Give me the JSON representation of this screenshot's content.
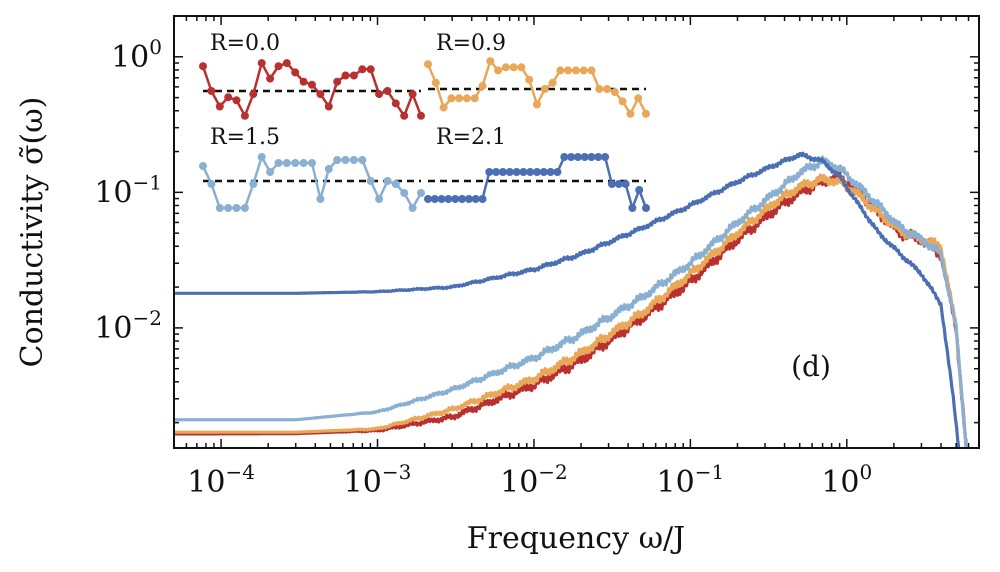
{
  "chart_data": {
    "type": "line",
    "panel_label": "(d)",
    "xlabel": "Frequency ω/J",
    "ylabel": "Conductivity σ̃(ω)",
    "x_scale": "log",
    "y_scale": "log",
    "xlim": [
      5e-05,
      7
    ],
    "ylim": [
      0.0013,
      2
    ],
    "x_ticks": [
      {
        "value": 0.0001,
        "base": "10",
        "exp": "−4"
      },
      {
        "value": 0.001,
        "base": "10",
        "exp": "−3"
      },
      {
        "value": 0.01,
        "base": "10",
        "exp": "−2"
      },
      {
        "value": 0.1,
        "base": "10",
        "exp": "−1"
      },
      {
        "value": 1,
        "base": "10",
        "exp": "0"
      }
    ],
    "y_ticks": [
      {
        "value": 1,
        "base": "10",
        "exp": "0"
      },
      {
        "value": 0.1,
        "base": "10",
        "exp": "−1"
      },
      {
        "value": 0.01,
        "base": "10",
        "exp": "−2"
      }
    ],
    "series": [
      {
        "name": "R=0.0",
        "color": "#b8312f",
        "noise": 0.045,
        "points": [
          [
            5e-05,
            0.00165
          ],
          [
            0.0003,
            0.00166
          ],
          [
            0.001,
            0.00175
          ],
          [
            0.003,
            0.0022
          ],
          [
            0.01,
            0.0038
          ],
          [
            0.02,
            0.0058
          ],
          [
            0.05,
            0.012
          ],
          [
            0.1,
            0.022
          ],
          [
            0.2,
            0.045
          ],
          [
            0.35,
            0.075
          ],
          [
            0.5,
            0.1
          ],
          [
            0.7,
            0.12
          ],
          [
            0.9,
            0.13
          ],
          [
            1.2,
            0.1
          ],
          [
            1.6,
            0.07
          ],
          [
            2.2,
            0.05
          ],
          [
            3,
            0.045
          ],
          [
            4,
            0.035
          ],
          [
            5,
            0.01
          ],
          [
            5.8,
            0.0013
          ]
        ]
      },
      {
        "name": "R=0.9",
        "color": "#e8a857",
        "noise": 0.04,
        "points": [
          [
            5e-05,
            0.0017
          ],
          [
            0.0003,
            0.0017
          ],
          [
            0.001,
            0.0018
          ],
          [
            0.003,
            0.0025
          ],
          [
            0.01,
            0.0042
          ],
          [
            0.02,
            0.0065
          ],
          [
            0.05,
            0.013
          ],
          [
            0.1,
            0.025
          ],
          [
            0.2,
            0.05
          ],
          [
            0.35,
            0.085
          ],
          [
            0.5,
            0.11
          ],
          [
            0.7,
            0.125
          ],
          [
            0.9,
            0.12
          ],
          [
            1.2,
            0.095
          ],
          [
            1.6,
            0.07
          ],
          [
            2.2,
            0.052
          ],
          [
            3,
            0.045
          ],
          [
            4,
            0.04
          ],
          [
            5,
            0.01
          ],
          [
            5.8,
            0.0013
          ]
        ]
      },
      {
        "name": "R=1.5",
        "color": "#89b0d2",
        "noise": 0.035,
        "points": [
          [
            5e-05,
            0.0021
          ],
          [
            0.0003,
            0.0021
          ],
          [
            0.001,
            0.0024
          ],
          [
            0.003,
            0.0035
          ],
          [
            0.01,
            0.006
          ],
          [
            0.02,
            0.009
          ],
          [
            0.05,
            0.017
          ],
          [
            0.1,
            0.03
          ],
          [
            0.2,
            0.06
          ],
          [
            0.35,
            0.1
          ],
          [
            0.5,
            0.14
          ],
          [
            0.7,
            0.17
          ],
          [
            0.9,
            0.15
          ],
          [
            1.2,
            0.11
          ],
          [
            1.6,
            0.08
          ],
          [
            2.2,
            0.055
          ],
          [
            3,
            0.045
          ],
          [
            4,
            0.035
          ],
          [
            5,
            0.01
          ],
          [
            5.8,
            0.0013
          ]
        ]
      },
      {
        "name": "R=2.1",
        "color": "#4a6fb2",
        "noise": 0.018,
        "points": [
          [
            5e-05,
            0.018
          ],
          [
            0.0003,
            0.018
          ],
          [
            0.001,
            0.0185
          ],
          [
            0.003,
            0.02
          ],
          [
            0.01,
            0.027
          ],
          [
            0.02,
            0.035
          ],
          [
            0.05,
            0.055
          ],
          [
            0.1,
            0.08
          ],
          [
            0.2,
            0.12
          ],
          [
            0.35,
            0.16
          ],
          [
            0.5,
            0.19
          ],
          [
            0.7,
            0.17
          ],
          [
            0.9,
            0.13
          ],
          [
            1.2,
            0.08
          ],
          [
            1.6,
            0.05
          ],
          [
            2.2,
            0.035
          ],
          [
            3,
            0.025
          ],
          [
            4,
            0.015
          ],
          [
            4.8,
            0.003
          ],
          [
            5.2,
            0.0013
          ]
        ]
      }
    ],
    "insets": [
      {
        "label": "R=0.0",
        "color": "#b8312f",
        "dashed_level": 0.5,
        "values": [
          0.9,
          0.5,
          0.25,
          0.4,
          0.35,
          0.1,
          0.45,
          0.95,
          0.7,
          0.9,
          0.95,
          0.8,
          0.65,
          0.6,
          0.45,
          0.25,
          0.65,
          0.75,
          0.75,
          0.85,
          0.85,
          0.45,
          0.5,
          0.3,
          0.1,
          0.45,
          0.1
        ]
      },
      {
        "label": "R=0.9",
        "color": "#e8a857",
        "dashed_level": 0.5,
        "values": [
          0.9,
          0.6,
          0.2,
          0.35,
          0.35,
          0.35,
          0.35,
          0.55,
          0.95,
          0.8,
          0.85,
          0.85,
          0.85,
          0.65,
          0.25,
          0.5,
          0.6,
          0.8,
          0.8,
          0.8,
          0.8,
          0.8,
          0.5,
          0.5,
          0.45,
          0.3,
          0.1,
          0.35,
          0.1
        ]
      },
      {
        "label": "R=1.5",
        "color": "#89b0d2",
        "dashed_level": 0.55,
        "values": [
          0.8,
          0.5,
          0.1,
          0.1,
          0.1,
          0.1,
          0.5,
          0.95,
          0.7,
          0.85,
          0.85,
          0.85,
          0.85,
          0.85,
          0.25,
          0.75,
          0.9,
          0.9,
          0.9,
          0.9,
          0.55,
          0.25,
          0.55,
          0.5,
          0.35,
          0.1,
          0.35
        ]
      },
      {
        "label": "R=2.1",
        "color": "#4a6fb2",
        "dashed_level": 0.55,
        "values": [
          0.25,
          0.25,
          0.25,
          0.25,
          0.25,
          0.25,
          0.25,
          0.25,
          0.25,
          0.7,
          0.7,
          0.7,
          0.7,
          0.7,
          0.7,
          0.7,
          0.7,
          0.7,
          0.7,
          0.7,
          0.95,
          0.95,
          0.95,
          0.95,
          0.95,
          0.95,
          0.95,
          0.5,
          0.5,
          0.5,
          0.1,
          0.4,
          0.1
        ]
      }
    ]
  }
}
